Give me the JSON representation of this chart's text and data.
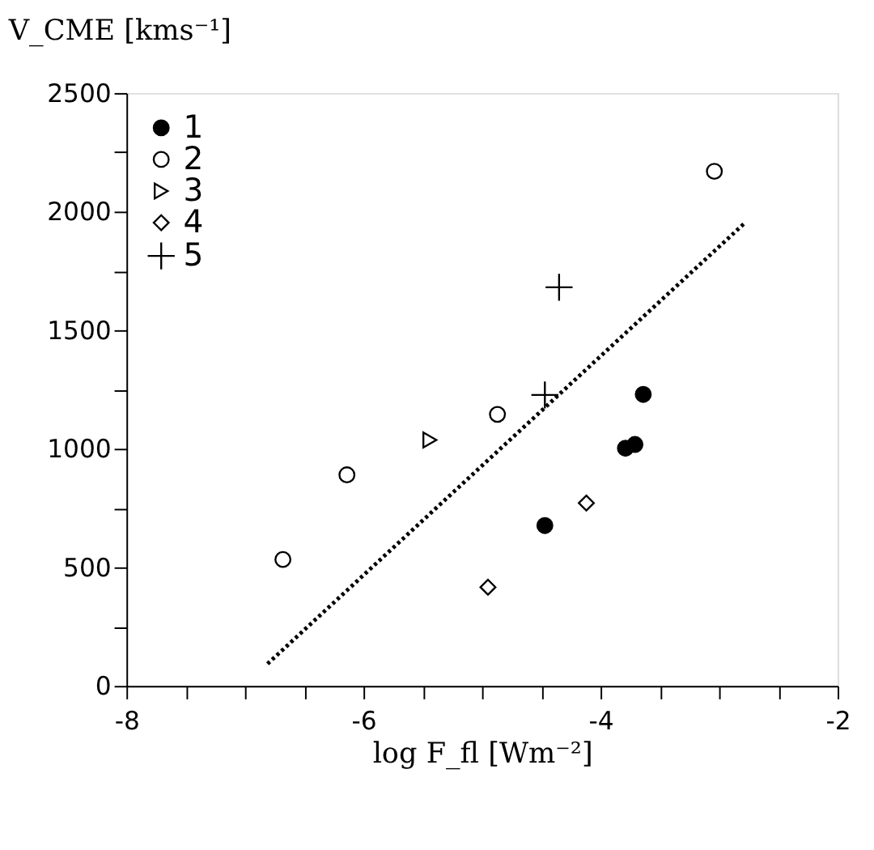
{
  "chart_data": {
    "type": "scatter",
    "xlabel": "log F_fl [Wm⁻²]",
    "ylabel": "V_CME [kms⁻¹]",
    "xlim": [
      -8,
      -2
    ],
    "ylim": [
      0,
      2500
    ],
    "xticks": [
      -8,
      {
        "value": -7.5,
        "label": null
      },
      {
        "value": -7,
        "label": null
      },
      {
        "value": -6.5,
        "label": null
      },
      -6,
      {
        "value": -5.5,
        "label": null
      },
      {
        "value": -5,
        "label": null
      },
      {
        "value": -4.5,
        "label": null
      },
      -4,
      {
        "value": -3.5,
        "label": null
      },
      {
        "value": -3,
        "label": null
      },
      {
        "value": -2.5,
        "label": null
      },
      -2
    ],
    "yticks": [
      0,
      {
        "value": 250,
        "label": null
      },
      500,
      {
        "value": 750,
        "label": null
      },
      1000,
      {
        "value": 1250,
        "label": null
      },
      1500,
      {
        "value": 1750,
        "label": null
      },
      2000,
      {
        "value": 2250,
        "label": null
      },
      2500
    ],
    "grid": false,
    "legend": "top left",
    "series": [
      {
        "name": "1",
        "color": "#000000",
        "marker": "point",
        "x": [
          -4.47,
          -3.79,
          -3.71,
          -3.64
        ],
        "values": [
          676,
          1002,
          1018,
          1229
        ]
      },
      {
        "name": "2",
        "color": "#000000",
        "marker": "circle",
        "x": [
          -3.04,
          -4.87,
          -6.14,
          -6.68
        ],
        "values": [
          2170,
          1145,
          890,
          533
        ]
      },
      {
        "name": "3",
        "color": "#000000",
        "marker": "triangle",
        "x": [
          -5.44
        ],
        "values": [
          1037
        ]
      },
      {
        "name": "4",
        "color": "#000000",
        "marker": "diamond",
        "x": [
          -4.12,
          -4.95
        ],
        "values": [
          771,
          416
        ]
      },
      {
        "name": "5",
        "color": "#000000",
        "marker": "cross",
        "x": [
          -4.35,
          -4.47
        ],
        "values": [
          1681,
          1227
        ]
      },
      {
        "type": "line",
        "line_style": "dotted",
        "color": "#000000",
        "x": [
          -6.81,
          -2.79
        ],
        "values": [
          93,
          1949
        ]
      }
    ]
  }
}
